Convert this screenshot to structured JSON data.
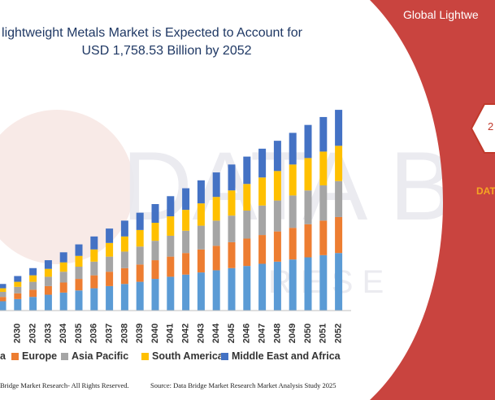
{
  "title": {
    "line1": "lightweight Metals Market is Expected to Account for",
    "line2": "USD 1,758.53 Billion by 2052"
  },
  "side_panel": {
    "title": "Global Lightwe",
    "badge_text": "2",
    "subtitle": "DAT",
    "color": "#c9443f"
  },
  "watermark": {
    "text": "DATA BRI",
    "subtext": "R E S E"
  },
  "footer": {
    "left": "Bridge Market Research- All Rights Reserved.",
    "right": "Source: Data Bridge Market Research  Market Analysis Study 2025"
  },
  "legend": {
    "items": [
      {
        "label": "a",
        "color": "#5b9bd5"
      },
      {
        "label": "Europe",
        "color": "#ed7d31"
      },
      {
        "label": "Asia Pacific",
        "color": "#a5a5a5"
      },
      {
        "label": "South America",
        "color": "#ffc000"
      },
      {
        "label": "Middle East and Africa",
        "color": "#4472c4"
      }
    ]
  },
  "chart_data": {
    "type": "bar",
    "stacked": true,
    "categories": [
      "",
      "2030",
      "2032",
      "2033",
      "2034",
      "2035",
      "2036",
      "2037",
      "2038",
      "2039",
      "2040",
      "2041",
      "2042",
      "2043",
      "2044",
      "2045",
      "2046",
      "2047",
      "2048",
      "2049",
      "2050",
      "2051",
      "2052"
    ],
    "series": [
      {
        "name": "a",
        "color": "#5b9bd5",
        "values": [
          13,
          16,
          19,
          22,
          25,
          28,
          31,
          34,
          37,
          40,
          44,
          47,
          50,
          53,
          56,
          59,
          62,
          65,
          68,
          71,
          74,
          77,
          80
        ]
      },
      {
        "name": "Europe",
        "color": "#ed7d31",
        "values": [
          6,
          8,
          10,
          12,
          14,
          16,
          18,
          20,
          22,
          24,
          26,
          28,
          30,
          32,
          34,
          36,
          38,
          40,
          42,
          44,
          46,
          48,
          50
        ]
      },
      {
        "name": "Asia Pacific",
        "color": "#a5a5a5",
        "values": [
          7,
          9,
          11,
          13,
          15,
          17,
          19,
          21,
          23,
          25,
          27,
          29,
          31,
          33,
          35,
          37,
          39,
          41,
          43,
          45,
          47,
          49,
          50
        ]
      },
      {
        "name": "South America",
        "color": "#ffc000",
        "values": [
          5,
          7,
          9,
          11,
          13,
          15,
          17,
          19,
          21,
          23,
          25,
          27,
          29,
          31,
          33,
          35,
          37,
          39,
          41,
          43,
          45,
          47,
          49
        ]
      },
      {
        "name": "Middle East and Africa",
        "color": "#4472c4",
        "values": [
          6,
          8,
          10,
          12,
          14,
          16,
          18,
          20,
          22,
          24,
          26,
          28,
          30,
          32,
          34,
          36,
          38,
          40,
          42,
          44,
          46,
          48,
          50
        ]
      }
    ],
    "grid": false,
    "legend_position": "bottom"
  }
}
